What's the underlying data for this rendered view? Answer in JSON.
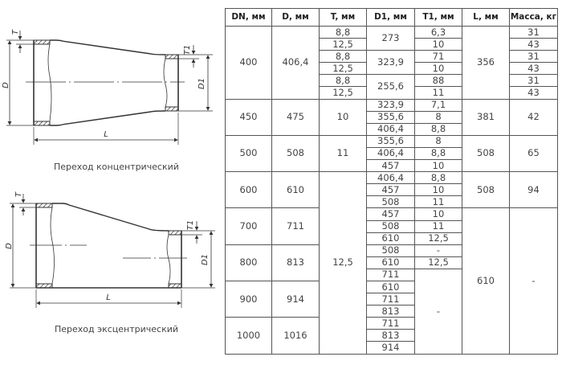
{
  "drawings": {
    "concentric": {
      "caption": "Переход концентрический",
      "labels": {
        "d": "D",
        "d1": "D1",
        "t": "T",
        "t1": "T1",
        "l": "L"
      }
    },
    "eccentric": {
      "caption": "Переход эксцентрический",
      "labels": {
        "d": "D",
        "d1": "D1",
        "t": "T",
        "t1": "T1",
        "l": "L"
      }
    }
  },
  "table": {
    "headers": [
      "DN, мм",
      "D, мм",
      "T, мм",
      "D1, мм",
      "T1, мм",
      "L, мм",
      "Масса, кг"
    ],
    "dn": [
      "400",
      "450",
      "500",
      "600",
      "700",
      "800",
      "900",
      "1000"
    ],
    "d": [
      "406,4",
      "475",
      "508",
      "610",
      "711",
      "813",
      "914",
      "1016"
    ],
    "t": [
      "8,8",
      "12,5",
      "8,8",
      "12,5",
      "8,8",
      "12,5",
      "10",
      "11",
      "12,5"
    ],
    "d1": [
      "273",
      "323,9",
      "255,6",
      "323,9",
      "355,6",
      "406,4",
      "355,6",
      "406,4",
      "457",
      "406,4",
      "457",
      "508",
      "457",
      "508",
      "610",
      "508",
      "610",
      "711",
      "610",
      "711",
      "813",
      "711",
      "813",
      "914"
    ],
    "t1": [
      "6,3",
      "10",
      "71",
      "10",
      "88",
      "11",
      "7,1",
      "8",
      "8,8",
      "8",
      "8,8",
      "10",
      "8,8",
      "10",
      "11",
      "10",
      "11",
      "12,5",
      "-",
      "12,5",
      "-"
    ],
    "l": [
      "356",
      "381",
      "508",
      "508",
      "610"
    ],
    "mass": [
      "31",
      "43",
      "31",
      "43",
      "31",
      "43",
      "42",
      "65",
      "94",
      "-"
    ]
  }
}
